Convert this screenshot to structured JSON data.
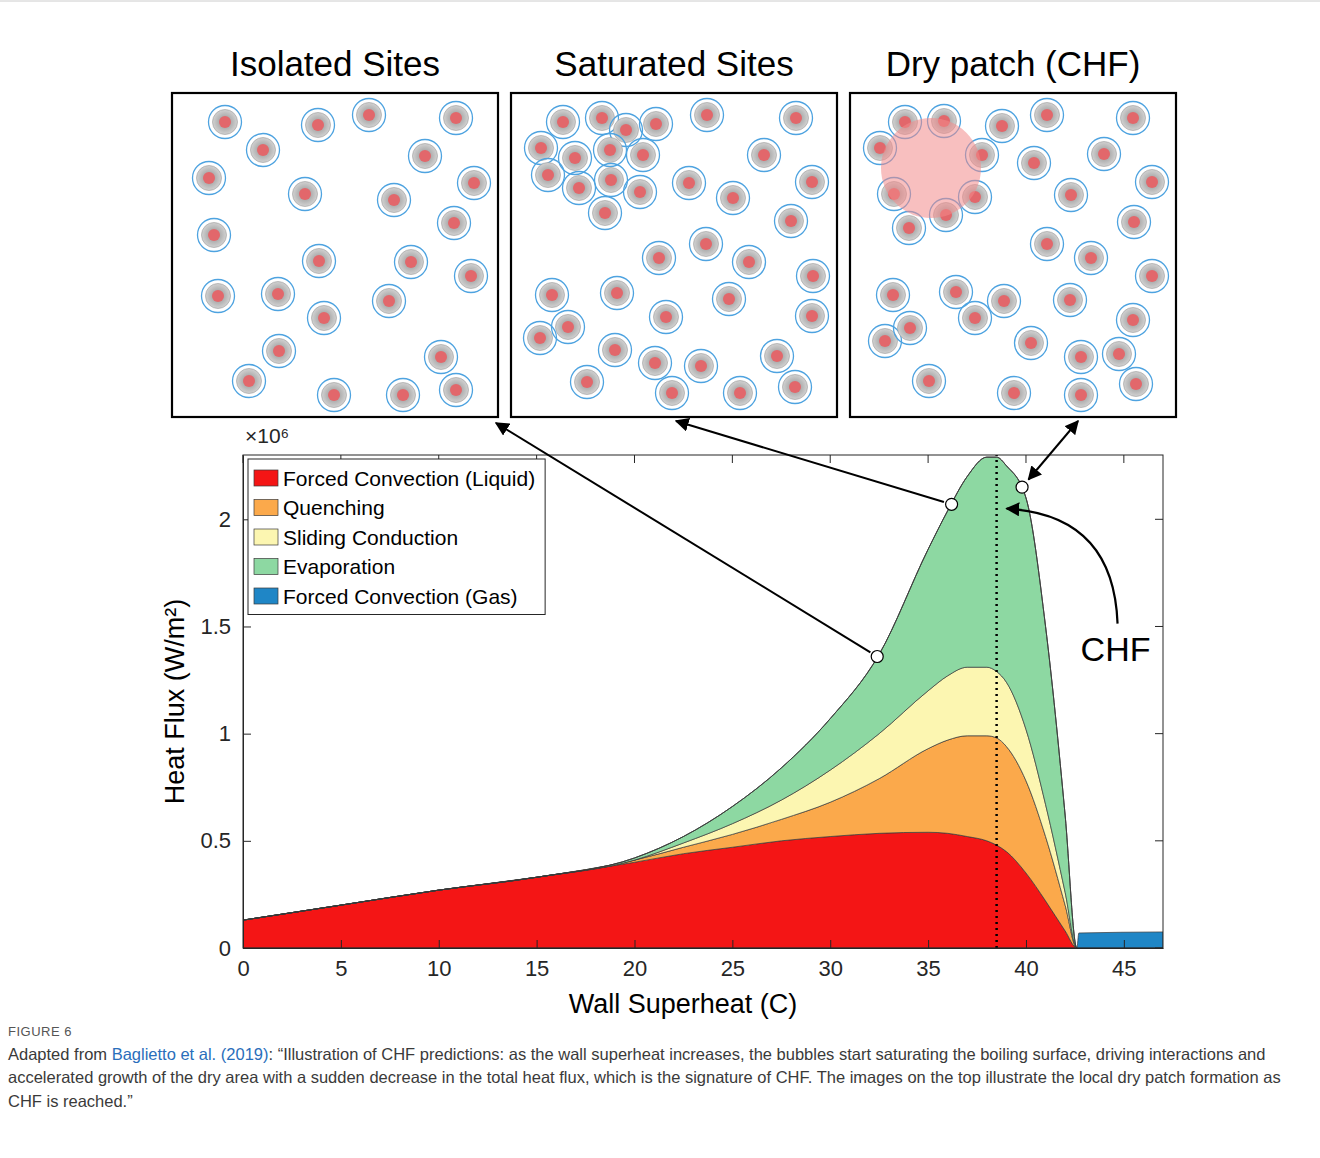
{
  "panels": [
    {
      "title": "Isolated Sites",
      "point": {
        "x": 32.4,
        "y": 1.36
      }
    },
    {
      "title": "Saturated Sites",
      "point": {
        "x": 36.2,
        "y": 2.07
      }
    },
    {
      "title": "Dry patch (CHF)",
      "point": {
        "x": 39.8,
        "y": 2.15
      }
    }
  ],
  "chart_data": {
    "type": "area",
    "stacked": true,
    "x_label": "Wall Superheat (C)",
    "y_label": "Heat Flux (W/m²)",
    "y_multiplier": "×10⁶",
    "x": [
      0,
      5,
      10,
      15,
      20,
      22.5,
      25,
      27.5,
      30,
      32.5,
      35,
      36,
      37,
      38,
      38.5,
      39,
      40,
      41,
      42,
      42.6,
      42.7,
      47
    ],
    "series": [
      {
        "name": "Forced Convection (Liquid)",
        "color": "#f41515",
        "values": [
          0.13,
          0.2,
          0.27,
          0.33,
          0.4,
          0.44,
          0.47,
          0.5,
          0.52,
          0.535,
          0.54,
          0.535,
          0.52,
          0.5,
          0.48,
          0.45,
          0.35,
          0.22,
          0.08,
          0,
          0,
          0
        ]
      },
      {
        "name": "Quenching",
        "color": "#fba94b",
        "values": [
          0,
          0,
          0,
          0,
          0.01,
          0.03,
          0.06,
          0.1,
          0.16,
          0.255,
          0.39,
          0.435,
          0.47,
          0.49,
          0.5,
          0.49,
          0.43,
          0.3,
          0.12,
          0,
          0,
          0
        ]
      },
      {
        "name": "Sliding Conduction",
        "color": "#fcf6b1",
        "values": [
          0,
          0,
          0,
          0,
          0,
          0.02,
          0.05,
          0.09,
          0.15,
          0.21,
          0.27,
          0.3,
          0.32,
          0.32,
          0.31,
          0.3,
          0.24,
          0.15,
          0.06,
          0,
          0,
          0
        ]
      },
      {
        "name": "Evaporation",
        "color": "#8dd8a2",
        "values": [
          0,
          0,
          0,
          0,
          0.01,
          0.03,
          0.08,
          0.15,
          0.24,
          0.37,
          0.66,
          0.77,
          0.89,
          0.98,
          1.0,
          1.01,
          1.08,
          0.83,
          0.36,
          0,
          0,
          0
        ]
      },
      {
        "name": "Forced Convection (Gas)",
        "color": "#1f86c6",
        "values": [
          0,
          0,
          0,
          0,
          0,
          0,
          0,
          0,
          0,
          0,
          0,
          0,
          0,
          0,
          0,
          0,
          0,
          0,
          0,
          0,
          0.07,
          0.075
        ]
      }
    ],
    "xlim": [
      0,
      47
    ],
    "xticks": [
      0,
      5,
      10,
      15,
      20,
      25,
      30,
      35,
      40,
      45
    ],
    "ylim": [
      0,
      2.3
    ],
    "yticks": [
      0,
      0.5,
      1,
      1.5,
      2
    ],
    "legend": "upper left",
    "annotations": [
      {
        "text": "CHF",
        "x": 38.5,
        "y": 2.05
      }
    ]
  },
  "caption": {
    "label": "FIGURE 6",
    "prefix": "Adapted from ",
    "link": "Baglietto et al. (2019)",
    "text": ": “Illustration of CHF predictions: as the wall superheat increases, the bubbles start saturating the boiling surface, driving interactions and accelerated growth of the dry area with a sudden decrease in the total heat flux, which is the signature of CHF. The images on the top illustrate the local dry patch formation as CHF is reached.”"
  }
}
